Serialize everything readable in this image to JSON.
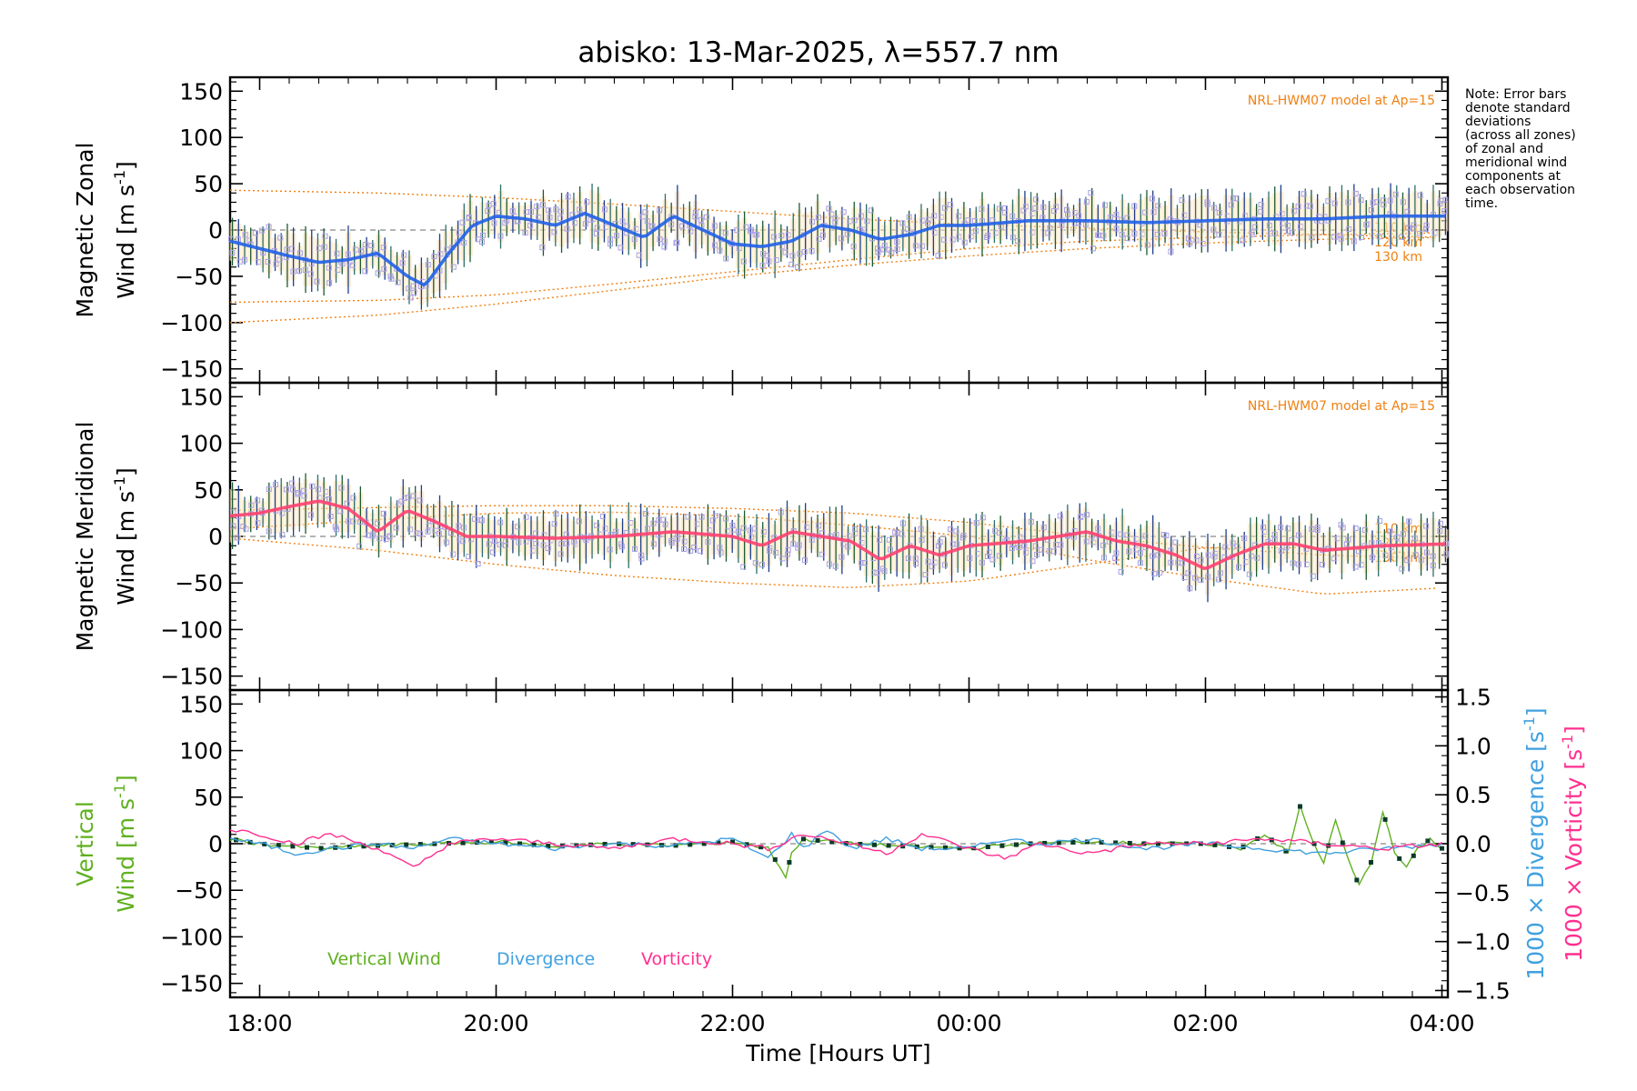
{
  "chart_data": {
    "title": "abisko: 13-Mar-2025, λ=557.7 nm",
    "type": "line",
    "xlabel": "Time [Hours UT]",
    "xlim": [
      17.75,
      28.05
    ],
    "x_ticks": [
      18,
      20,
      22,
      24,
      26,
      28
    ],
    "x_tick_labels": [
      "18:00",
      "20:00",
      "22:00",
      "00:00",
      "02:00",
      "04:00"
    ],
    "y_ticks": [
      -150,
      -100,
      -50,
      0,
      50,
      100,
      150
    ],
    "y_tick_labels": [
      "−150",
      "−100",
      "−50",
      "0",
      "50",
      "100",
      "150"
    ],
    "note_lines": [
      "Note: Error bars",
      "denote standard",
      "deviations",
      "(across all zones)",
      "of zonal and",
      "meridional wind",
      "components at",
      "each observation",
      "time."
    ],
    "panels": [
      {
        "id": "zonal",
        "ylabel_line1": "Magnetic Zonal",
        "ylabel_line2": "Wind [m s",
        "ylabel_sup": "-1",
        "ylabel_close": "]",
        "ylim": [
          -165,
          165
        ],
        "model_label": "NRL-HWM07 model at Ap=15",
        "model_km_labels": [
          "110 km",
          "120 km",
          "130 km"
        ],
        "series": [
          {
            "name": "Magnetic Zonal Wind",
            "color": "#2060e8",
            "x": [
              17.75,
              18.0,
              18.25,
              18.5,
              18.75,
              19.0,
              19.25,
              19.4,
              19.6,
              19.8,
              20.0,
              20.25,
              20.5,
              20.75,
              21.0,
              21.25,
              21.5,
              21.75,
              22.0,
              22.25,
              22.5,
              22.75,
              23.0,
              23.25,
              23.5,
              23.75,
              24.0,
              24.5,
              25.0,
              25.5,
              26.0,
              26.5,
              27.0,
              27.5,
              28.05
            ],
            "y": [
              -12,
              -20,
              -28,
              -35,
              -32,
              -25,
              -50,
              -60,
              -25,
              5,
              15,
              12,
              5,
              18,
              5,
              -8,
              15,
              0,
              -15,
              -18,
              -12,
              5,
              0,
              -10,
              -5,
              5,
              5,
              10,
              10,
              8,
              10,
              12,
              12,
              15,
              15
            ]
          }
        ],
        "models": [
          {
            "name": "NRL-HWM07 110 km",
            "color": "#f08010",
            "x": [
              17.75,
              19,
              20,
              21,
              22,
              23,
              24,
              25,
              26,
              27,
              28.05
            ],
            "y": [
              43,
              40,
              35,
              28,
              20,
              12,
              6,
              2,
              -2,
              -5,
              -8
            ]
          },
          {
            "name": "NRL-HWM07 120 km",
            "color": "#f08010",
            "x": [
              17.75,
              19,
              20,
              21,
              22,
              23,
              24,
              25,
              26,
              27,
              28.05
            ],
            "y": [
              -78,
              -76,
              -70,
              -58,
              -45,
              -32,
              -20,
              -12,
              -8,
              -5,
              -3
            ]
          },
          {
            "name": "NRL-HWM07 130 km",
            "color": "#f08010",
            "x": [
              17.75,
              19,
              20,
              21,
              22,
              23,
              24,
              25,
              26,
              27,
              28.05
            ],
            "y": [
              -100,
              -92,
              -80,
              -65,
              -50,
              -38,
              -28,
              -20,
              -14,
              -10,
              -8
            ]
          }
        ]
      },
      {
        "id": "meridional",
        "ylabel_line1": "Magnetic Meridional",
        "ylabel_line2": "Wind [m s",
        "ylabel_sup": "-1",
        "ylabel_close": "]",
        "ylim": [
          -165,
          165
        ],
        "model_label": "NRL-HWM07 model at Ap=15",
        "model_km_labels": [
          "110 km",
          "120 km",
          "130 km"
        ],
        "series": [
          {
            "name": "Magnetic Meridional Wind",
            "color": "#ff4070",
            "x": [
              17.75,
              18.0,
              18.25,
              18.5,
              18.75,
              19.0,
              19.25,
              19.5,
              19.75,
              20.0,
              20.5,
              21.0,
              21.5,
              22.0,
              22.25,
              22.5,
              22.75,
              23.0,
              23.25,
              23.5,
              23.75,
              24.0,
              24.5,
              25.0,
              25.25,
              25.5,
              25.75,
              26.0,
              26.25,
              26.5,
              26.75,
              27.0,
              27.5,
              28.05
            ],
            "y": [
              22,
              25,
              32,
              38,
              30,
              5,
              28,
              15,
              0,
              0,
              -2,
              0,
              5,
              0,
              -10,
              5,
              0,
              -5,
              -25,
              -10,
              -20,
              -10,
              -5,
              5,
              -5,
              -10,
              -20,
              -35,
              -20,
              -8,
              -8,
              -15,
              -10,
              -8
            ]
          }
        ],
        "models": [
          {
            "name": "NRL-HWM07 110 km",
            "color": "#f08010",
            "x": [
              17.75,
              19,
              20,
              21,
              22,
              23,
              24,
              25,
              26,
              27,
              28.05
            ],
            "y": [
              28,
              31,
              33,
              33,
              30,
              25,
              15,
              0,
              -12,
              -20,
              -24
            ]
          },
          {
            "name": "NRL-HWM07 120 km",
            "color": "#f08010",
            "x": [
              17.75,
              19,
              20,
              21,
              22,
              23,
              24,
              25,
              26,
              27,
              28.05
            ],
            "y": [
              8,
              18,
              25,
              26,
              22,
              12,
              0,
              -25,
              -45,
              -62,
              -55
            ]
          },
          {
            "name": "NRL-HWM07 130 km",
            "color": "#f08010",
            "x": [
              17.75,
              19,
              20,
              21,
              22,
              23,
              24,
              25,
              26,
              27,
              28.05
            ],
            "y": [
              -2,
              -15,
              -30,
              -42,
              -50,
              -55,
              -48,
              -30,
              -12,
              -12,
              -20
            ]
          }
        ]
      },
      {
        "id": "vertical",
        "ylabel_line1": "Vertical",
        "ylabel_line2": "Wind [m s",
        "ylabel_sup": "-1",
        "ylabel_close": "]",
        "ylim": [
          -165,
          165
        ],
        "right_axis": {
          "ylim": [
            -1.57,
            1.57
          ],
          "ticks": [
            -1.5,
            -1.0,
            -0.5,
            0.0,
            0.5,
            1.0,
            1.5
          ],
          "tick_labels": [
            "−1.5",
            "−1.0",
            "−0.5",
            "0.0",
            "0.5",
            "1.0",
            "1.5"
          ],
          "label_div": "1000 × Divergence [s",
          "label_vor": "1000 × Vorticity [s",
          "sup": "-1",
          "close": "]"
        },
        "legend": [
          "Vertical Wind",
          "Divergence",
          "Vorticity"
        ],
        "series": [
          {
            "name": "Vertical Wind",
            "color": "#60b020",
            "axis": "left",
            "x": [
              17.75,
              18.0,
              18.5,
              19.0,
              19.5,
              20.0,
              20.5,
              21.0,
              21.5,
              22.0,
              22.3,
              22.45,
              22.5,
              22.6,
              23.0,
              23.5,
              24.0,
              24.5,
              25.0,
              25.5,
              26.0,
              26.3,
              26.5,
              26.7,
              26.8,
              26.9,
              27.0,
              27.1,
              27.2,
              27.3,
              27.4,
              27.5,
              27.6,
              27.7,
              27.8,
              27.9,
              28.05
            ],
            "y": [
              5,
              0,
              -5,
              -2,
              0,
              2,
              -3,
              0,
              -2,
              2,
              -5,
              -35,
              -10,
              5,
              0,
              -3,
              -5,
              0,
              2,
              0,
              0,
              -5,
              10,
              -10,
              40,
              5,
              -20,
              25,
              -15,
              -45,
              -20,
              35,
              -10,
              -25,
              -5,
              5,
              -10
            ]
          },
          {
            "name": "Divergence",
            "color": "#40a0e0",
            "axis": "right",
            "x": [
              17.75,
              18.0,
              18.3,
              18.6,
              19.0,
              19.3,
              19.6,
              20.0,
              20.5,
              21.0,
              21.5,
              22.0,
              22.3,
              22.5,
              22.6,
              22.8,
              23.0,
              23.3,
              23.6,
              24.0,
              24.3,
              24.6,
              25.0,
              25.5,
              26.0,
              26.5,
              27.0,
              27.5,
              28.05
            ],
            "y": [
              0.05,
              0.0,
              -0.1,
              -0.05,
              0.0,
              -0.05,
              0.05,
              0.0,
              -0.05,
              0.0,
              -0.02,
              0.05,
              -0.15,
              0.1,
              -0.05,
              0.15,
              -0.05,
              0.05,
              -0.05,
              -0.05,
              0.05,
              0.0,
              0.05,
              -0.05,
              0.0,
              -0.05,
              -0.1,
              -0.05,
              0.0
            ]
          },
          {
            "name": "Vorticity",
            "color": "#ff3090",
            "axis": "right",
            "x": [
              17.75,
              18.0,
              18.3,
              18.6,
              19.0,
              19.3,
              19.6,
              20.0,
              20.5,
              21.0,
              21.5,
              22.0,
              22.3,
              22.6,
              23.0,
              23.3,
              23.6,
              24.0,
              24.3,
              24.6,
              25.0,
              25.5,
              26.0,
              26.5,
              27.0,
              27.5,
              28.05
            ],
            "y": [
              0.15,
              0.1,
              0.0,
              0.1,
              -0.05,
              -0.25,
              0.0,
              0.05,
              0.0,
              -0.05,
              0.05,
              0.0,
              -0.05,
              0.1,
              0.0,
              -0.1,
              0.1,
              -0.05,
              -0.15,
              0.0,
              -0.1,
              0.0,
              0.0,
              0.05,
              0.0,
              -0.05,
              0.0
            ]
          }
        ]
      }
    ]
  }
}
